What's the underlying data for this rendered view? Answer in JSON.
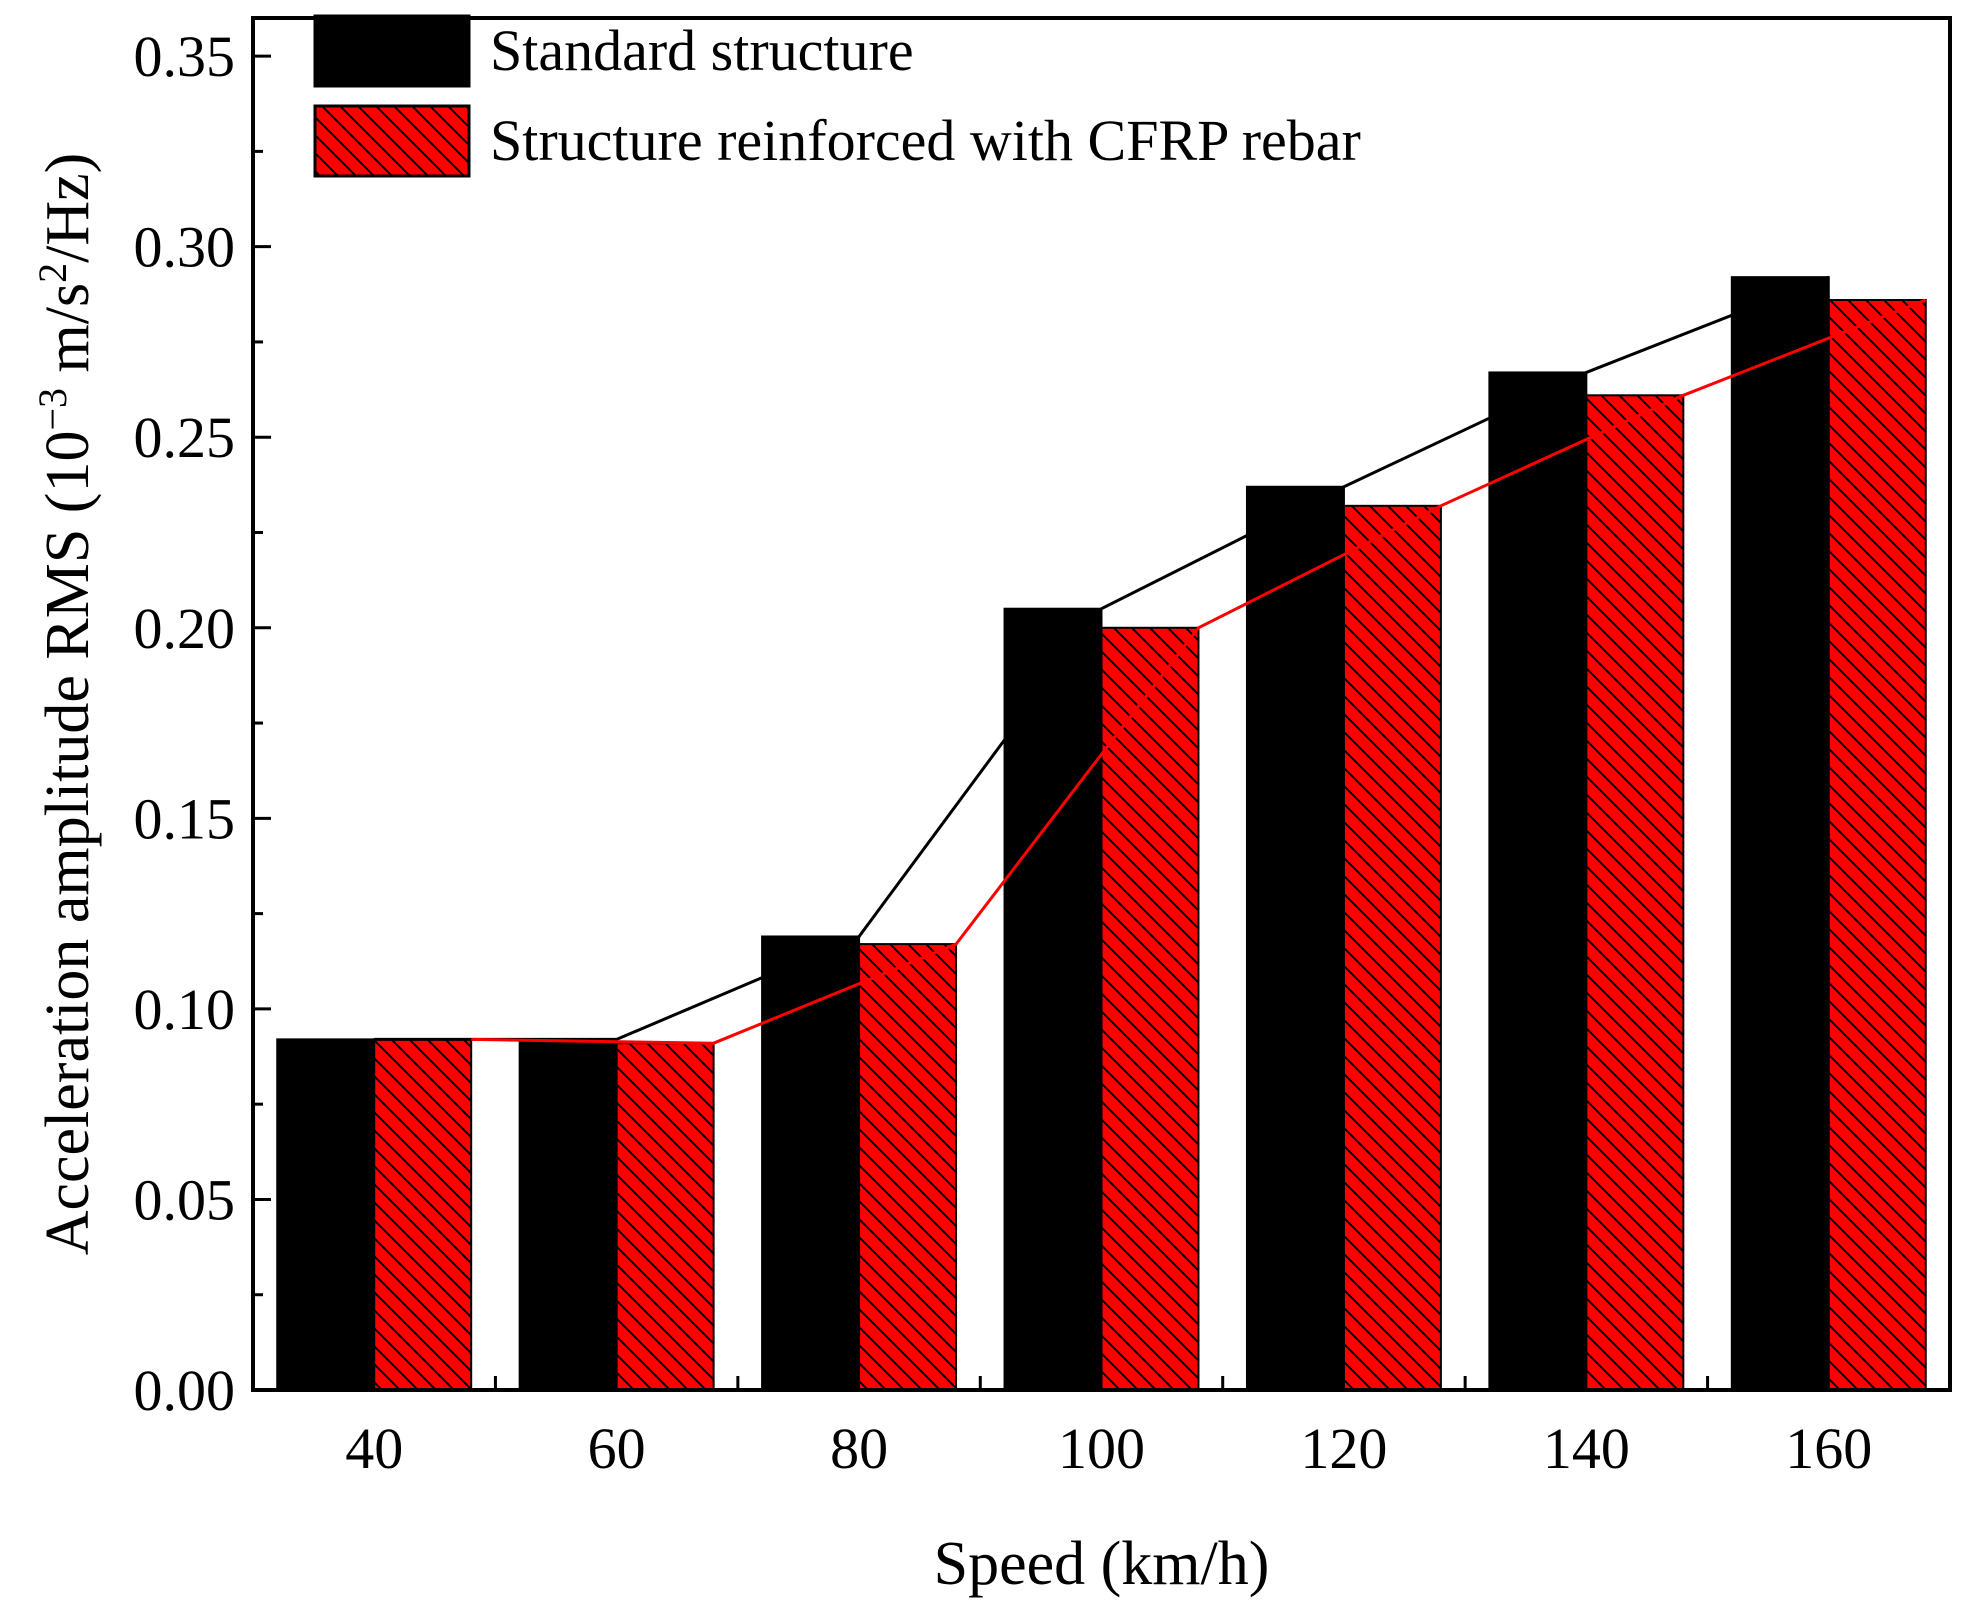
{
  "chart_data": {
    "type": "bar",
    "title": "",
    "xlabel": "Speed (km/h)",
    "ylabel_parts": {
      "prefix": "Acceleration amplitude RMS (10",
      "exp1": "−3",
      "middle": " m/s",
      "exp2": "2",
      "suffix": "/Hz)"
    },
    "ylim": [
      0,
      0.36
    ],
    "yticks": [
      "0.00",
      "0.05",
      "0.10",
      "0.15",
      "0.20",
      "0.25",
      "0.30",
      "0.35"
    ],
    "ytick_values": [
      0,
      0.05,
      0.1,
      0.15,
      0.2,
      0.25,
      0.3,
      0.35
    ],
    "categories": [
      "40",
      "60",
      "80",
      "100",
      "120",
      "140",
      "160"
    ],
    "series": [
      {
        "name": "Standard structure",
        "values": [
          0.092,
          0.092,
          0.119,
          0.205,
          0.237,
          0.267,
          0.292
        ],
        "color": "#000000",
        "line_color": "#000000",
        "pattern": "solid"
      },
      {
        "name": "Structure reinforced with CFRP rebar",
        "values": [
          0.092,
          0.091,
          0.117,
          0.2,
          0.232,
          0.261,
          0.286
        ],
        "color": "#ff0000",
        "line_color": "#ff0000",
        "pattern": "hatched"
      }
    ],
    "legend_position": "top-left",
    "grid": false,
    "overlay": "line connecting bar tops per series"
  }
}
